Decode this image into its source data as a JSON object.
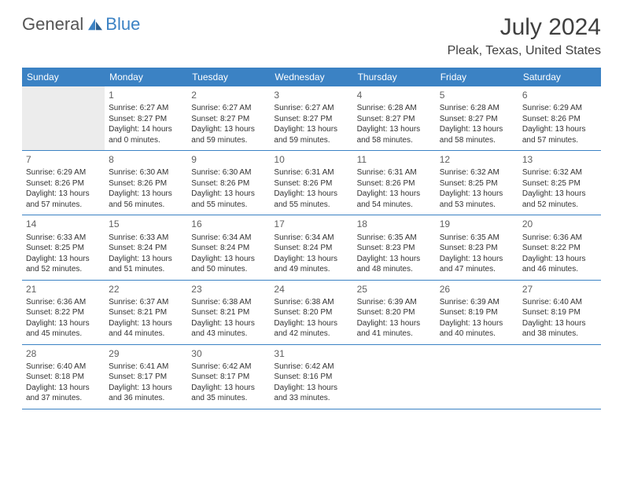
{
  "logo": {
    "text1": "General",
    "text2": "Blue"
  },
  "title": "July 2024",
  "location": "Pleak, Texas, United States",
  "colors": {
    "header_bg": "#3b82c4",
    "header_text": "#ffffff",
    "text": "#333333",
    "blank_bg": "#ececec",
    "rule": "#3b82c4"
  },
  "fonts": {
    "title_size": 30,
    "location_size": 16,
    "dow_size": 12,
    "daynum_size": 12,
    "body_size": 10
  },
  "dow": [
    "Sunday",
    "Monday",
    "Tuesday",
    "Wednesday",
    "Thursday",
    "Friday",
    "Saturday"
  ],
  "weeks": [
    [
      {
        "blank": "lead"
      },
      {
        "day": "1",
        "sunrise": "Sunrise: 6:27 AM",
        "sunset": "Sunset: 8:27 PM",
        "daylight": "Daylight: 14 hours and 0 minutes."
      },
      {
        "day": "2",
        "sunrise": "Sunrise: 6:27 AM",
        "sunset": "Sunset: 8:27 PM",
        "daylight": "Daylight: 13 hours and 59 minutes."
      },
      {
        "day": "3",
        "sunrise": "Sunrise: 6:27 AM",
        "sunset": "Sunset: 8:27 PM",
        "daylight": "Daylight: 13 hours and 59 minutes."
      },
      {
        "day": "4",
        "sunrise": "Sunrise: 6:28 AM",
        "sunset": "Sunset: 8:27 PM",
        "daylight": "Daylight: 13 hours and 58 minutes."
      },
      {
        "day": "5",
        "sunrise": "Sunrise: 6:28 AM",
        "sunset": "Sunset: 8:27 PM",
        "daylight": "Daylight: 13 hours and 58 minutes."
      },
      {
        "day": "6",
        "sunrise": "Sunrise: 6:29 AM",
        "sunset": "Sunset: 8:26 PM",
        "daylight": "Daylight: 13 hours and 57 minutes."
      }
    ],
    [
      {
        "day": "7",
        "sunrise": "Sunrise: 6:29 AM",
        "sunset": "Sunset: 8:26 PM",
        "daylight": "Daylight: 13 hours and 57 minutes."
      },
      {
        "day": "8",
        "sunrise": "Sunrise: 6:30 AM",
        "sunset": "Sunset: 8:26 PM",
        "daylight": "Daylight: 13 hours and 56 minutes."
      },
      {
        "day": "9",
        "sunrise": "Sunrise: 6:30 AM",
        "sunset": "Sunset: 8:26 PM",
        "daylight": "Daylight: 13 hours and 55 minutes."
      },
      {
        "day": "10",
        "sunrise": "Sunrise: 6:31 AM",
        "sunset": "Sunset: 8:26 PM",
        "daylight": "Daylight: 13 hours and 55 minutes."
      },
      {
        "day": "11",
        "sunrise": "Sunrise: 6:31 AM",
        "sunset": "Sunset: 8:26 PM",
        "daylight": "Daylight: 13 hours and 54 minutes."
      },
      {
        "day": "12",
        "sunrise": "Sunrise: 6:32 AM",
        "sunset": "Sunset: 8:25 PM",
        "daylight": "Daylight: 13 hours and 53 minutes."
      },
      {
        "day": "13",
        "sunrise": "Sunrise: 6:32 AM",
        "sunset": "Sunset: 8:25 PM",
        "daylight": "Daylight: 13 hours and 52 minutes."
      }
    ],
    [
      {
        "day": "14",
        "sunrise": "Sunrise: 6:33 AM",
        "sunset": "Sunset: 8:25 PM",
        "daylight": "Daylight: 13 hours and 52 minutes."
      },
      {
        "day": "15",
        "sunrise": "Sunrise: 6:33 AM",
        "sunset": "Sunset: 8:24 PM",
        "daylight": "Daylight: 13 hours and 51 minutes."
      },
      {
        "day": "16",
        "sunrise": "Sunrise: 6:34 AM",
        "sunset": "Sunset: 8:24 PM",
        "daylight": "Daylight: 13 hours and 50 minutes."
      },
      {
        "day": "17",
        "sunrise": "Sunrise: 6:34 AM",
        "sunset": "Sunset: 8:24 PM",
        "daylight": "Daylight: 13 hours and 49 minutes."
      },
      {
        "day": "18",
        "sunrise": "Sunrise: 6:35 AM",
        "sunset": "Sunset: 8:23 PM",
        "daylight": "Daylight: 13 hours and 48 minutes."
      },
      {
        "day": "19",
        "sunrise": "Sunrise: 6:35 AM",
        "sunset": "Sunset: 8:23 PM",
        "daylight": "Daylight: 13 hours and 47 minutes."
      },
      {
        "day": "20",
        "sunrise": "Sunrise: 6:36 AM",
        "sunset": "Sunset: 8:22 PM",
        "daylight": "Daylight: 13 hours and 46 minutes."
      }
    ],
    [
      {
        "day": "21",
        "sunrise": "Sunrise: 6:36 AM",
        "sunset": "Sunset: 8:22 PM",
        "daylight": "Daylight: 13 hours and 45 minutes."
      },
      {
        "day": "22",
        "sunrise": "Sunrise: 6:37 AM",
        "sunset": "Sunset: 8:21 PM",
        "daylight": "Daylight: 13 hours and 44 minutes."
      },
      {
        "day": "23",
        "sunrise": "Sunrise: 6:38 AM",
        "sunset": "Sunset: 8:21 PM",
        "daylight": "Daylight: 13 hours and 43 minutes."
      },
      {
        "day": "24",
        "sunrise": "Sunrise: 6:38 AM",
        "sunset": "Sunset: 8:20 PM",
        "daylight": "Daylight: 13 hours and 42 minutes."
      },
      {
        "day": "25",
        "sunrise": "Sunrise: 6:39 AM",
        "sunset": "Sunset: 8:20 PM",
        "daylight": "Daylight: 13 hours and 41 minutes."
      },
      {
        "day": "26",
        "sunrise": "Sunrise: 6:39 AM",
        "sunset": "Sunset: 8:19 PM",
        "daylight": "Daylight: 13 hours and 40 minutes."
      },
      {
        "day": "27",
        "sunrise": "Sunrise: 6:40 AM",
        "sunset": "Sunset: 8:19 PM",
        "daylight": "Daylight: 13 hours and 38 minutes."
      }
    ],
    [
      {
        "day": "28",
        "sunrise": "Sunrise: 6:40 AM",
        "sunset": "Sunset: 8:18 PM",
        "daylight": "Daylight: 13 hours and 37 minutes."
      },
      {
        "day": "29",
        "sunrise": "Sunrise: 6:41 AM",
        "sunset": "Sunset: 8:17 PM",
        "daylight": "Daylight: 13 hours and 36 minutes."
      },
      {
        "day": "30",
        "sunrise": "Sunrise: 6:42 AM",
        "sunset": "Sunset: 8:17 PM",
        "daylight": "Daylight: 13 hours and 35 minutes."
      },
      {
        "day": "31",
        "sunrise": "Sunrise: 6:42 AM",
        "sunset": "Sunset: 8:16 PM",
        "daylight": "Daylight: 13 hours and 33 minutes."
      },
      {
        "blank": "trail"
      },
      {
        "blank": "trail"
      },
      {
        "blank": "trail"
      }
    ]
  ]
}
